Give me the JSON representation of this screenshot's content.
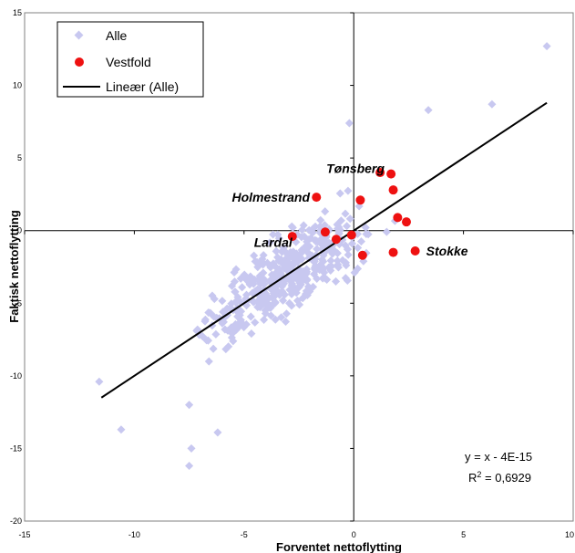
{
  "chart_data": {
    "type": "scatter",
    "xlabel": "Forventet nettoflytting",
    "ylabel": "Faktisk nettoflytting",
    "xlim": [
      -15,
      10
    ],
    "ylim": [
      -20,
      15
    ],
    "x_ticks": [
      "-15",
      "-10",
      "-5",
      "0",
      "5",
      "10"
    ],
    "y_ticks": [
      "15",
      "10",
      "5",
      "0",
      "-5",
      "-10",
      "-15",
      "-20"
    ],
    "grid": false,
    "legend": {
      "position": "top-left",
      "entries": [
        {
          "label": "Alle",
          "marker": "diamond",
          "color": "#c8c8f0"
        },
        {
          "label": "Vestfold",
          "marker": "circle",
          "color": "#ee1111"
        },
        {
          "label": "Lineær (Alle)",
          "marker": "line",
          "color": "#000000"
        }
      ]
    },
    "trendline": {
      "name": "Lineær (Alle)",
      "x": [
        -11.5,
        8.8
      ],
      "y": [
        -11.5,
        8.8
      ],
      "equation": "y = x - 4E-15",
      "r2_prefix": "R",
      "r2_sup": "2",
      "r2_value": " = 0,6929"
    },
    "series": [
      {
        "name": "Vestfold",
        "color": "#ee1111",
        "marker": "circle",
        "x": [
          1.2,
          1.7,
          1.8,
          -1.7,
          0.3,
          2.0,
          2.4,
          -2.8,
          -1.3,
          -0.8,
          -0.1,
          0.4,
          1.8,
          2.8
        ],
        "y": [
          4.0,
          3.9,
          2.8,
          2.3,
          2.1,
          0.9,
          0.6,
          -0.4,
          -0.1,
          -0.6,
          -0.3,
          -1.7,
          -1.5,
          -1.4
        ]
      }
    ],
    "annotations": [
      {
        "text": "Tønsberg",
        "x": 1.4,
        "y": 4.3
      },
      {
        "text": "Holmestrand",
        "x": -2.0,
        "y": 2.3
      },
      {
        "text": "Lardal",
        "x": -2.8,
        "y": -0.8
      },
      {
        "text": "Stokke",
        "x": 3.3,
        "y": -1.4
      }
    ],
    "all_series_name": "Alle",
    "all_series_color": "#c8c8f0"
  }
}
